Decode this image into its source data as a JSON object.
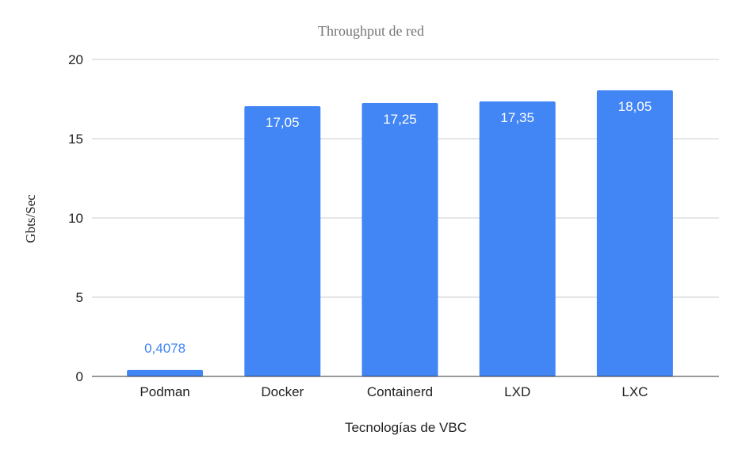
{
  "chart_data": {
    "type": "bar",
    "title": "Throughput de red",
    "xlabel": "Tecnologías de VBC",
    "ylabel": "Gbts/Sec",
    "categories": [
      "Podman",
      "Docker",
      "Containerd",
      "LXD",
      "LXC"
    ],
    "values": [
      0.4078,
      17.05,
      17.25,
      17.35,
      18.05
    ],
    "value_labels": [
      "0,4078",
      "17,05",
      "17,25",
      "17,35",
      "18,05"
    ],
    "ylim": [
      0,
      20
    ],
    "yticks": [
      0,
      5,
      10,
      15,
      20
    ],
    "ytick_labels": [
      "0",
      "5",
      "10",
      "15",
      "20"
    ],
    "grid": true,
    "legend": "none",
    "bar_color": "#4285f4"
  }
}
